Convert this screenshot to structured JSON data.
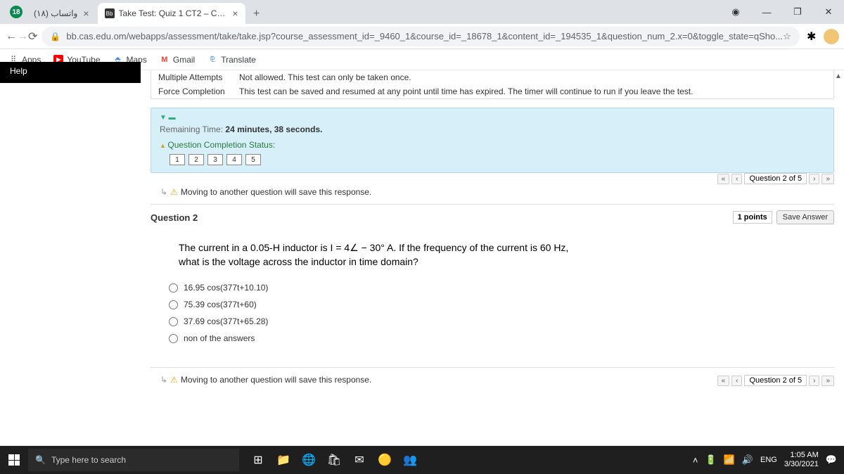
{
  "browser": {
    "notification_count": "18",
    "tabs": [
      {
        "title": "واتساب (١٨)",
        "active": false
      },
      {
        "title": "Take Test: Quiz 1 CT2 – Circuits T",
        "active": true,
        "favicon": "Bb"
      }
    ],
    "url": "bb.cas.edu.om/webapps/assessment/take/take.jsp?course_assessment_id=_9460_1&course_id=_18678_1&content_id=_194535_1&question_num_2.x=0&toggle_state=qSho...",
    "bookmarks": {
      "apps": "Apps",
      "youtube": "YouTube",
      "maps": "Maps",
      "gmail": "Gmail",
      "translate": "Translate"
    },
    "win_minimize": "—",
    "win_restore": "❐",
    "win_close": "✕"
  },
  "help_label": "Help",
  "attempts": {
    "label": "Multiple Attempts",
    "text": "Not allowed. This test can only be taken once."
  },
  "force": {
    "label": "Force Completion",
    "text": "This test can be saved and resumed at any point until time has expired. The timer will continue to run if you leave the test."
  },
  "timer": {
    "label": "Remaining Time:",
    "value": "24 minutes, 38 seconds."
  },
  "completion_label": "Question Completion Status:",
  "questions": [
    "1",
    "2",
    "3",
    "4",
    "5"
  ],
  "move_warning": "Moving to another question will save this response.",
  "nav": {
    "first": "«",
    "prev": "‹",
    "label": "Question 2 of 5",
    "next": "›",
    "last": "»"
  },
  "question": {
    "title": "Question 2",
    "points": "1 points",
    "save": "Save Answer",
    "body1": "The current in a 0.05-H inductor is  I = 4∠ − 30° A. If the frequency of the current is 60 Hz,",
    "body2": "what is the voltage across the inductor in time domain?",
    "options": [
      "16.95 cos(377t+10.10)",
      "75.39 cos(377t+60)",
      "37.69 cos(377t+65.28)",
      "non of the answers"
    ]
  },
  "taskbar": {
    "search_placeholder": "Type here to search",
    "lang": "ENG",
    "time": "1:05 AM",
    "date": "3/30/2021"
  }
}
